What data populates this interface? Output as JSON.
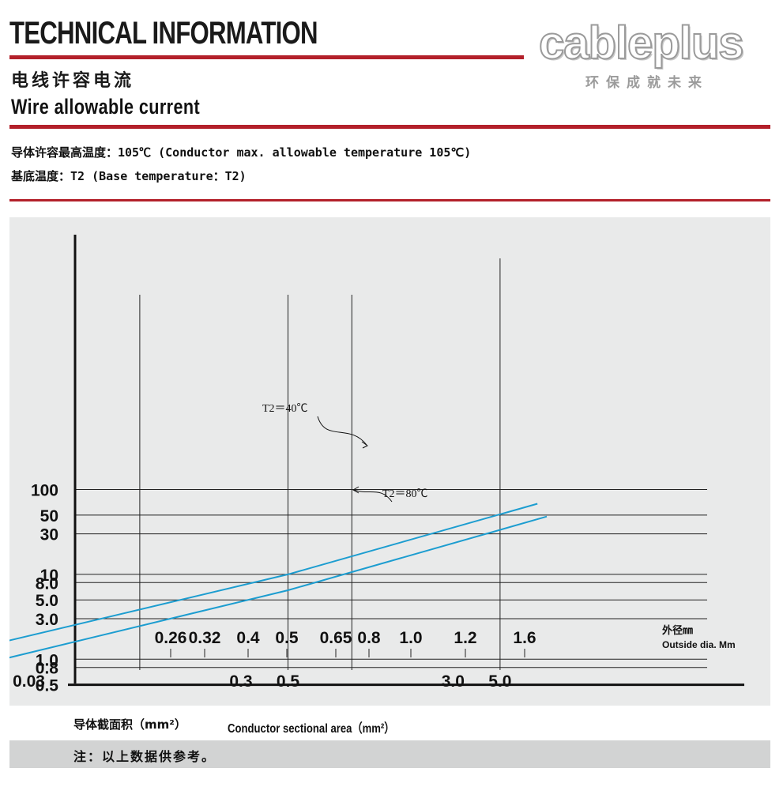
{
  "header": {
    "title": "TECHNICAL INFORMATION",
    "subtitle_cn": "电线许容电流",
    "subtitle_en": "Wire allowable current",
    "logo_text": "cableplus",
    "slogan": "环保成就未来"
  },
  "info": {
    "line1": "导体许容最高温度：105℃  (Conductor max. allowable temperature 105℃)",
    "line2": "基底温度：T2   (Base temperature：T2)"
  },
  "colors": {
    "accent": "#b3202a",
    "series": "#1c9dd0",
    "panel": "#e9eaea",
    "note_bar": "#d2d3d3"
  },
  "chart_data": {
    "type": "line",
    "y_scale": "log",
    "x_scale": "log",
    "ylim": [
      0.5,
      100
    ],
    "y_ticks": [
      "100",
      "50",
      "30",
      "10",
      "8.0",
      "5.0",
      "3.0",
      "1.0",
      "0.8",
      "0.5"
    ],
    "x_ticks_area": [
      "0.03",
      "0.3",
      "0.5",
      "3.0",
      "5.0"
    ],
    "x_ticks_dia": [
      "0.26",
      "0.32",
      "0.4",
      "0.5",
      "0.65",
      "0.8",
      "1.0",
      "1.2",
      "1.6"
    ],
    "xlabel_dia": "外径㎜\nOutside dia. Mm",
    "xlabel_area_cn": "导体截面积（mm²）",
    "xlabel_area_en": "Conductor sectional area（mm²）",
    "series": [
      {
        "name": "T2＝40℃",
        "points": [
          [
            0.013,
            1.15
          ],
          [
            0.5,
            10
          ],
          [
            7.5,
            68
          ]
        ]
      },
      {
        "name": "T2＝80℃",
        "points": [
          [
            0.014,
            0.75
          ],
          [
            0.5,
            6.5
          ],
          [
            8.3,
            48
          ]
        ]
      }
    ]
  },
  "note": "注：以上数据供参考。"
}
